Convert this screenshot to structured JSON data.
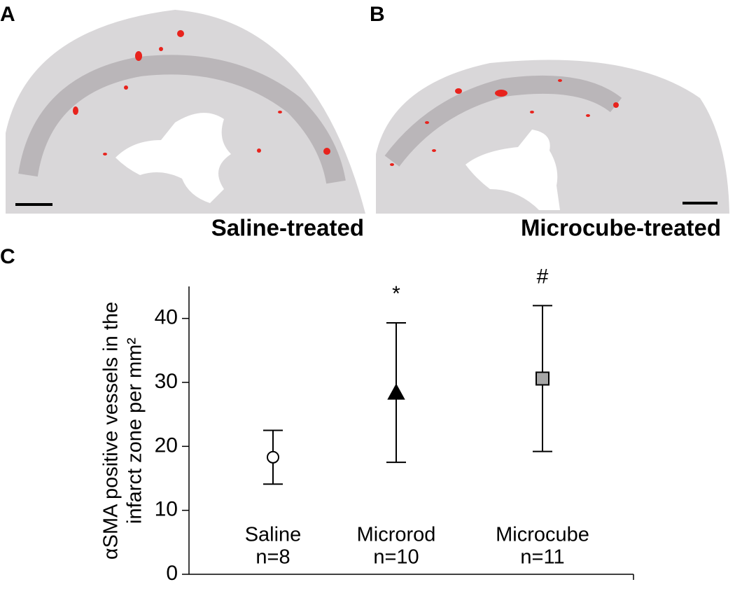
{
  "panels": {
    "a": {
      "label": "A",
      "caption": "Saline-treated"
    },
    "b": {
      "label": "B",
      "caption": "Microcube-treated"
    },
    "c": {
      "label": "C"
    }
  },
  "chart_data": {
    "type": "errorbar",
    "ylabel": [
      "αSMA positive vessels in the",
      "infarct zone per mm²"
    ],
    "categories": [
      "Saline",
      "Microrod",
      "Microcube"
    ],
    "n_labels": [
      "n=8",
      "n=10",
      "n=11"
    ],
    "values": [
      18.3,
      28.4,
      30.6
    ],
    "errors": [
      4.2,
      10.9,
      11.4
    ],
    "markers": [
      "circle",
      "triangle",
      "square"
    ],
    "colors": [
      "#ffffff",
      "#000000",
      "#a6a6a6"
    ],
    "annotations": [
      null,
      "*",
      "#"
    ],
    "ylim": [
      0,
      45
    ],
    "yticks": [
      0,
      10,
      20,
      30,
      40
    ]
  }
}
